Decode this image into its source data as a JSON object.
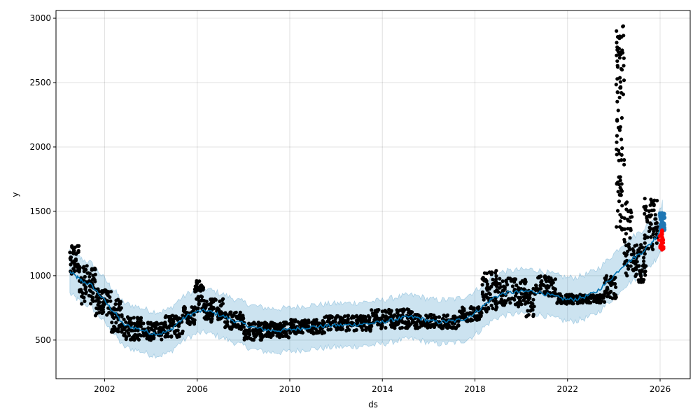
{
  "chart_data": {
    "type": "scatter",
    "xlabel": "ds",
    "ylabel": "y",
    "xlim": [
      1999.9,
      2027.3
    ],
    "ylim": [
      200,
      3060
    ],
    "x_ticks": [
      {
        "value": 2002,
        "label": "2002"
      },
      {
        "value": 2006,
        "label": "2006"
      },
      {
        "value": 2010,
        "label": "2010"
      },
      {
        "value": 2014,
        "label": "2014"
      },
      {
        "value": 2018,
        "label": "2018"
      },
      {
        "value": 2022,
        "label": "2022"
      },
      {
        "value": 2026,
        "label": "2026"
      }
    ],
    "y_ticks": [
      {
        "value": 500,
        "label": "500"
      },
      {
        "value": 1000,
        "label": "1000"
      },
      {
        "value": 1500,
        "label": "1500"
      },
      {
        "value": 2000,
        "label": "2000"
      },
      {
        "value": 2500,
        "label": "2500"
      },
      {
        "value": 3000,
        "label": "3000"
      }
    ],
    "grid": true,
    "colors": {
      "observed": "#000000",
      "forecast_line": "#0072B2",
      "interval": "#0072B2",
      "future_forecast": "#1f77b4",
      "future_actual": "#ff0000"
    },
    "forecast_trend": [
      [
        2000.5,
        1030
      ],
      [
        2000.8,
        990
      ],
      [
        2001.0,
        960
      ],
      [
        2001.4,
        930
      ],
      [
        2001.8,
        850
      ],
      [
        2002.2,
        760
      ],
      [
        2002.5,
        700
      ],
      [
        2002.8,
        620
      ],
      [
        2003.2,
        600
      ],
      [
        2003.6,
        580
      ],
      [
        2004.0,
        555
      ],
      [
        2004.4,
        550
      ],
      [
        2004.8,
        570
      ],
      [
        2005.2,
        640
      ],
      [
        2005.6,
        690
      ],
      [
        2006.0,
        720
      ],
      [
        2006.4,
        730
      ],
      [
        2006.8,
        705
      ],
      [
        2007.2,
        680
      ],
      [
        2007.6,
        650
      ],
      [
        2008.0,
        625
      ],
      [
        2008.4,
        600
      ],
      [
        2008.8,
        585
      ],
      [
        2009.2,
        575
      ],
      [
        2009.6,
        575
      ],
      [
        2010.0,
        580
      ],
      [
        2010.4,
        590
      ],
      [
        2010.8,
        600
      ],
      [
        2011.2,
        605
      ],
      [
        2011.6,
        610
      ],
      [
        2012.0,
        615
      ],
      [
        2012.4,
        615
      ],
      [
        2012.8,
        620
      ],
      [
        2013.2,
        625
      ],
      [
        2013.6,
        630
      ],
      [
        2014.0,
        640
      ],
      [
        2014.4,
        655
      ],
      [
        2014.8,
        670
      ],
      [
        2015.2,
        680
      ],
      [
        2015.6,
        670
      ],
      [
        2016.0,
        650
      ],
      [
        2016.4,
        640
      ],
      [
        2016.8,
        645
      ],
      [
        2017.2,
        650
      ],
      [
        2017.6,
        670
      ],
      [
        2018.0,
        710
      ],
      [
        2018.4,
        770
      ],
      [
        2018.8,
        830
      ],
      [
        2019.2,
        860
      ],
      [
        2019.6,
        870
      ],
      [
        2020.0,
        875
      ],
      [
        2020.4,
        880
      ],
      [
        2020.8,
        870
      ],
      [
        2021.2,
        850
      ],
      [
        2021.6,
        830
      ],
      [
        2022.0,
        815
      ],
      [
        2022.4,
        820
      ],
      [
        2022.8,
        840
      ],
      [
        2023.2,
        870
      ],
      [
        2023.6,
        930
      ],
      [
        2024.0,
        1000
      ],
      [
        2024.4,
        1080
      ],
      [
        2024.8,
        1130
      ],
      [
        2025.2,
        1180
      ],
      [
        2025.6,
        1250
      ],
      [
        2025.9,
        1320
      ],
      [
        2026.1,
        1400
      ]
    ],
    "observed_clusters": [
      {
        "x": [
          2000.5,
          2000.9
        ],
        "y": [
          1000,
          1240
        ],
        "n": 40
      },
      {
        "x": [
          2000.9,
          2001.6
        ],
        "y": [
          780,
          1080
        ],
        "n": 70
      },
      {
        "x": [
          2001.6,
          2002.3
        ],
        "y": [
          690,
          900
        ],
        "n": 60
      },
      {
        "x": [
          2002.3,
          2002.8
        ],
        "y": [
          560,
          820
        ],
        "n": 50
      },
      {
        "x": [
          2002.8,
          2003.6
        ],
        "y": [
          500,
          680
        ],
        "n": 70
      },
      {
        "x": [
          2003.6,
          2004.6
        ],
        "y": [
          500,
          640
        ],
        "n": 80
      },
      {
        "x": [
          2004.6,
          2005.4
        ],
        "y": [
          520,
          700
        ],
        "n": 60
      },
      {
        "x": [
          2005.4,
          2005.9
        ],
        "y": [
          620,
          760
        ],
        "n": 40
      },
      {
        "x": [
          2005.9,
          2006.3
        ],
        "y": [
          720,
          960
        ],
        "n": 50
      },
      {
        "x": [
          2006.3,
          2007.2
        ],
        "y": [
          640,
          820
        ],
        "n": 70
      },
      {
        "x": [
          2007.2,
          2008.0
        ],
        "y": [
          580,
          720
        ],
        "n": 70
      },
      {
        "x": [
          2008.0,
          2008.9
        ],
        "y": [
          500,
          640
        ],
        "n": 80
      },
      {
        "x": [
          2008.9,
          2010.0
        ],
        "y": [
          520,
          640
        ],
        "n": 90
      },
      {
        "x": [
          2010.0,
          2011.5
        ],
        "y": [
          550,
          660
        ],
        "n": 110
      },
      {
        "x": [
          2011.5,
          2013.5
        ],
        "y": [
          570,
          690
        ],
        "n": 140
      },
      {
        "x": [
          2013.5,
          2015.3
        ],
        "y": [
          590,
          740
        ],
        "n": 130
      },
      {
        "x": [
          2015.3,
          2017.3
        ],
        "y": [
          590,
          700
        ],
        "n": 130
      },
      {
        "x": [
          2017.3,
          2018.3
        ],
        "y": [
          640,
          760
        ],
        "n": 70
      },
      {
        "x": [
          2018.3,
          2019.0
        ],
        "y": [
          720,
          1040
        ],
        "n": 70
      },
      {
        "x": [
          2019.0,
          2020.2
        ],
        "y": [
          760,
          980
        ],
        "n": 90
      },
      {
        "x": [
          2020.2,
          2020.6
        ],
        "y": [
          670,
          900
        ],
        "n": 30
      },
      {
        "x": [
          2020.6,
          2021.5
        ],
        "y": [
          840,
          1000
        ],
        "n": 60
      },
      {
        "x": [
          2021.5,
          2022.6
        ],
        "y": [
          780,
          860
        ],
        "n": 80
      },
      {
        "x": [
          2022.6,
          2023.6
        ],
        "y": [
          790,
          850
        ],
        "n": 80
      },
      {
        "x": [
          2023.6,
          2024.1
        ],
        "y": [
          820,
          1000
        ],
        "n": 40
      },
      {
        "x": [
          2024.1,
          2024.45
        ],
        "y": [
          1350,
          2940
        ],
        "n": 90
      },
      {
        "x": [
          2024.45,
          2024.8
        ],
        "y": [
          1000,
          1600
        ],
        "n": 40
      },
      {
        "x": [
          2024.8,
          2025.4
        ],
        "y": [
          940,
          1250
        ],
        "n": 60
      },
      {
        "x": [
          2025.3,
          2025.9
        ],
        "y": [
          1200,
          1600
        ],
        "n": 60
      }
    ],
    "future_actual": {
      "x": [
        2025.95,
        2026.15
      ],
      "y": [
        1200,
        1370
      ],
      "n": 30
    },
    "future_forecast": {
      "x": [
        2026.0,
        2026.2
      ],
      "y": [
        1350,
        1490
      ],
      "n": 40
    }
  }
}
